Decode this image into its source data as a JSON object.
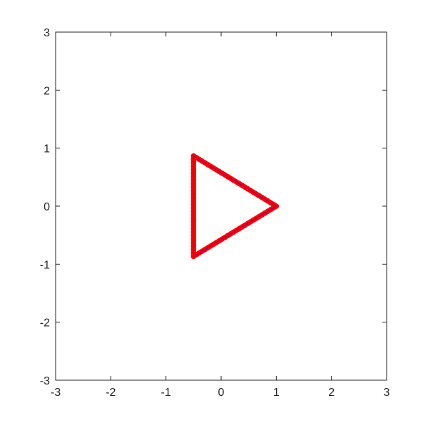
{
  "chart_data": {
    "type": "line",
    "title": "",
    "xlabel": "",
    "ylabel": "",
    "xlim": [
      -3,
      3
    ],
    "ylim": [
      -3,
      3
    ],
    "x_ticks": [
      -3,
      -2,
      -1,
      0,
      1,
      2,
      3
    ],
    "y_ticks": [
      -3,
      -2,
      -1,
      0,
      1,
      2,
      3
    ],
    "x_tick_labels": [
      "-3",
      "-2",
      "-1",
      "0",
      "1",
      "2",
      "3"
    ],
    "y_tick_labels": [
      "-3",
      "-2",
      "-1",
      "0",
      "1",
      "2",
      "3"
    ],
    "grid": false,
    "box": true,
    "series": [
      {
        "color": "#ff0000",
        "marker": "o",
        "x": [
          1,
          -0.5,
          -0.5,
          1
        ],
        "y": [
          0,
          0.866,
          -0.866,
          0
        ]
      },
      {
        "color": "#0000ff",
        "marker": "line",
        "x": [
          1,
          -0.5,
          -0.5,
          1
        ],
        "y": [
          0,
          0.866,
          -0.866,
          0
        ]
      }
    ]
  }
}
